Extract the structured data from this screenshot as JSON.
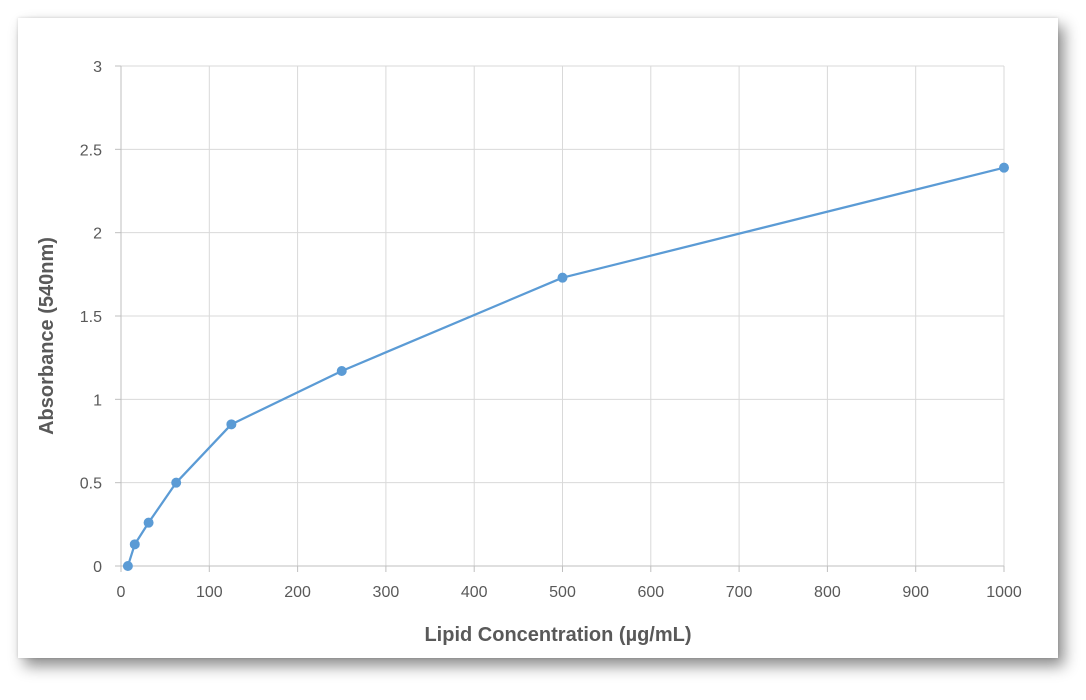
{
  "chart_data": {
    "type": "scatter",
    "title": "",
    "xlabel": "Lipid Concentration (µg/mL)",
    "ylabel": "Absorbance (540nm)",
    "xlim": [
      0,
      1000
    ],
    "ylim": [
      0,
      3
    ],
    "xticks": [
      0,
      100,
      200,
      300,
      400,
      500,
      600,
      700,
      800,
      900,
      1000
    ],
    "yticks": [
      0,
      0.5,
      1,
      1.5,
      2,
      2.5,
      3
    ],
    "xtick_labels": [
      "0",
      "100",
      "200",
      "300",
      "400",
      "500",
      "600",
      "700",
      "800",
      "900",
      "1000"
    ],
    "ytick_labels": [
      "0",
      "0.5",
      "1",
      "1.5",
      "2",
      "2.5",
      "3"
    ],
    "grid": true,
    "legend": "none",
    "series": [
      {
        "color": "#5B9BD5",
        "lines": true,
        "markers": true,
        "x": [
          7.8,
          15.6,
          31.25,
          62.5,
          125,
          250,
          500,
          1000
        ],
        "y": [
          0.0,
          0.13,
          0.26,
          0.5,
          0.85,
          1.17,
          1.73,
          2.39
        ]
      }
    ]
  }
}
